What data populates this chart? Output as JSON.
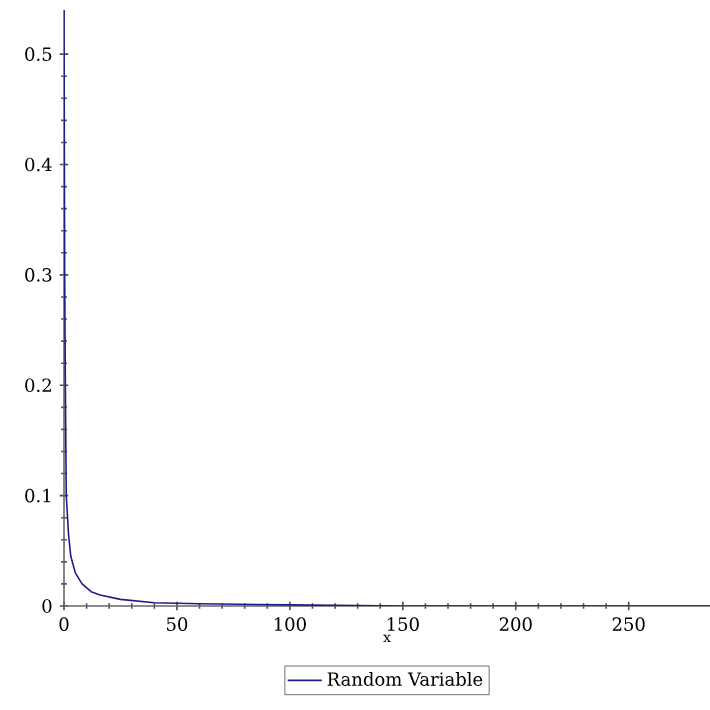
{
  "chart_data": {
    "type": "line",
    "xlabel": "x",
    "x": [
      0,
      0.3,
      0.6,
      1,
      2,
      3,
      5,
      8,
      12,
      16,
      25,
      40,
      60,
      100,
      150,
      200,
      286
    ],
    "series": [
      {
        "name": "Random Variable",
        "color": "#1c1c8a",
        "values": [
          0.54,
          0.3,
          0.2,
          0.1,
          0.065,
          0.045,
          0.03,
          0.02,
          0.013,
          0.01,
          0.006,
          0.003,
          0.002,
          0.001,
          0,
          0,
          0
        ]
      }
    ],
    "xlim": [
      0,
      286
    ],
    "ylim": [
      0,
      0.54
    ],
    "xticks": [
      0,
      50,
      100,
      150,
      200,
      250
    ],
    "yticks": [
      0,
      0.1,
      0.2,
      0.3,
      0.4,
      0.5
    ],
    "legend": "bottom",
    "grid": false
  }
}
